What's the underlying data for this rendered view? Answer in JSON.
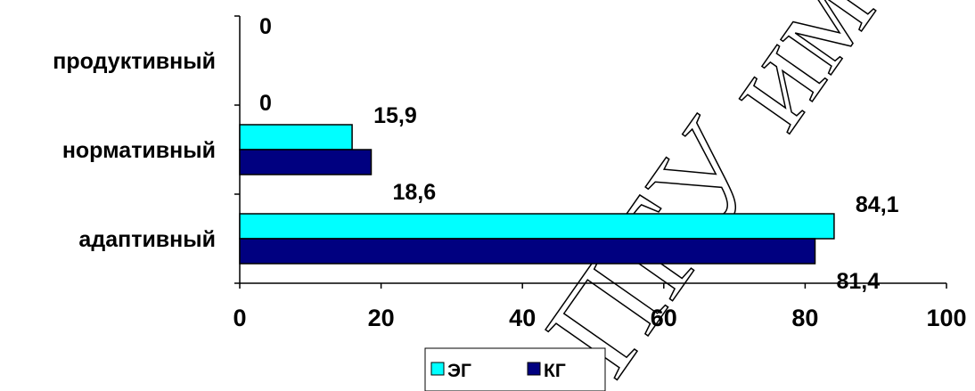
{
  "chart_data": {
    "type": "bar",
    "orientation": "horizontal",
    "categories": [
      "адаптивный",
      "нормативный",
      "продуктивный"
    ],
    "series": [
      {
        "name": "ЭГ",
        "color": "#00FFFF",
        "values": [
          84.1,
          15.9,
          0
        ]
      },
      {
        "name": "КГ",
        "color": "#000080",
        "values": [
          81.4,
          18.6,
          0
        ]
      }
    ],
    "data_labels": [
      [
        "84,1",
        "15,9",
        "0"
      ],
      [
        "81,4",
        "18,6",
        "0"
      ]
    ],
    "xlim": [
      0,
      100
    ],
    "x_ticks": [
      0,
      20,
      40,
      60,
      80,
      100
    ],
    "x_tick_labels": [
      "0",
      "20",
      "40",
      "60",
      "80",
      "100"
    ],
    "grid": false,
    "legend": "bottom"
  },
  "watermark": {
    "text": "ПГУ имени П.Шамякина"
  }
}
